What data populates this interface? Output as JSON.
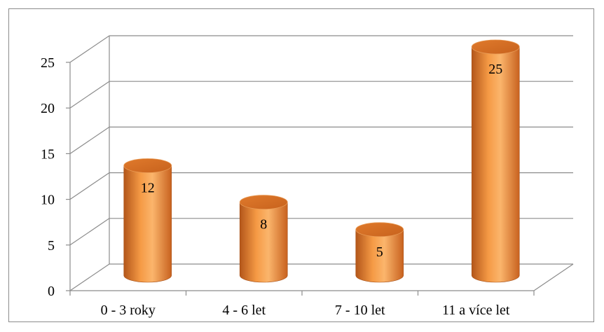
{
  "chart_data": {
    "type": "bar",
    "style": "3d-cylinder",
    "categories": [
      "0 - 3 roky",
      "4 - 6 let",
      "7 - 10 let",
      "11 a více let"
    ],
    "values": [
      12,
      8,
      5,
      25
    ],
    "value_labels": [
      "12",
      "8",
      "5",
      "25"
    ],
    "title": "",
    "xlabel": "",
    "ylabel": "",
    "ylim": [
      0,
      25
    ],
    "yticks": [
      "0",
      "5",
      "10",
      "15",
      "20",
      "25"
    ],
    "grid": true,
    "legend": "none",
    "colors": {
      "bar": "#f0923a",
      "bar_dark": "#b3561a",
      "bar_light": "#fbb56c",
      "bar_top": "#d8712a",
      "grid": "#8c8c8c"
    }
  }
}
